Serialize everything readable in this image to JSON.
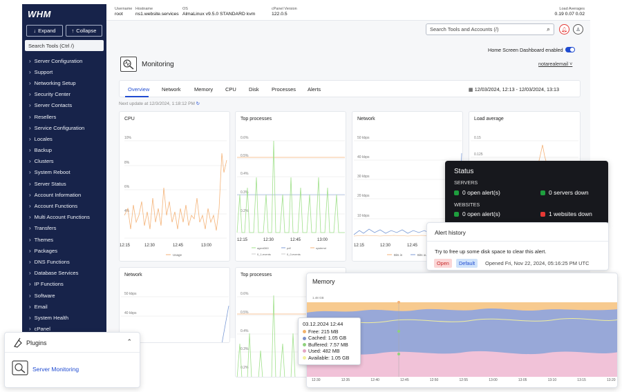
{
  "sidebar": {
    "logo": "WHM",
    "expand_label": "Expand",
    "collapse_label": "Collapse",
    "search_placeholder": "Search Tools (Ctrl /)",
    "items": [
      "Server Configuration",
      "Support",
      "Networking Setup",
      "Security Center",
      "Server Contacts",
      "Resellers",
      "Service Configuration",
      "Locales",
      "Backup",
      "Clusters",
      "System Reboot",
      "Server Status",
      "Account Information",
      "Account Functions",
      "Multi Account Functions",
      "Transfers",
      "Themes",
      "Packages",
      "DNS Functions",
      "Database Services",
      "IP Functions",
      "Software",
      "Email",
      "System Health",
      "cPanel"
    ]
  },
  "topbar": {
    "username_label": "Username",
    "username": "root",
    "hostname_label": "Hostname",
    "hostname": "ns1.website.services",
    "os_label": "OS",
    "os": "AlmaLinux v9.5.0 STANDARD kvm",
    "cpanel_label": "cPanel Version",
    "cpanel": "122.0.5",
    "load_label": "Load Averages",
    "load": "0.19  0.07  0.02"
  },
  "header": {
    "search_placeholder": "Search Tools and Accounts (/)",
    "dashboard_toggle_label": "Home Screen Dashboard enabled",
    "dashboard_enabled": true,
    "page_title": "Monitoring",
    "user": "notarealemail"
  },
  "tabs": [
    "Overview",
    "Network",
    "Memory",
    "CPU",
    "Disk",
    "Processes",
    "Alerts"
  ],
  "active_tab": "Overview",
  "date_range": "12/03/2024, 12:13 - 12/03/2024, 13:13",
  "next_update": "Next update at 12/3/2024, 1:18:12 PM",
  "cards": {
    "cpu": {
      "title": "CPU",
      "yticks": [
        "10%",
        "8%",
        "6%",
        "4%"
      ],
      "xticks": [
        "12:15",
        "12:30",
        "12:45",
        "13:00"
      ],
      "legend": "Usage"
    },
    "top_processes": {
      "title": "Top processes",
      "yticks": [
        "0.6%",
        "0.5%",
        "0.4%",
        "0.3%",
        "0.2%"
      ],
      "xticks": [
        "12:15",
        "12:30",
        "12:45",
        "13:00"
      ],
      "legend": [
        "agent360",
        "pdf",
        "systemd",
        "0_1-events",
        "0_0-events"
      ]
    },
    "network": {
      "title": "Network",
      "yticks": [
        "50 kbps",
        "40 kbps",
        "30 kbps",
        "20 kbps",
        "10 kbps"
      ],
      "xticks": [
        "12:15",
        "12:30",
        "12:45"
      ],
      "legend": [
        "Bits in",
        "Bits out"
      ]
    },
    "load": {
      "title": "Load average",
      "yticks": [
        "0.15",
        "0.125"
      ]
    },
    "network2": {
      "title": "Network",
      "yticks": [
        "50 kbps",
        "40 kbps"
      ]
    },
    "top_processes2": {
      "title": "Top processes",
      "yticks": [
        "0.6%",
        "0.5%",
        "0.4%",
        "0.3%",
        "0.2%"
      ]
    }
  },
  "status": {
    "title": "Status",
    "servers_label": "SERVERS",
    "servers_alerts": "0 open alert(s)",
    "servers_down": "0 servers down",
    "websites_label": "WEBSITES",
    "websites_alerts": "0 open alert(s)",
    "websites_down": "1 websites down",
    "ok_color": "#1e9e3e",
    "bad_color": "#e53935"
  },
  "alert_history": {
    "title": "Alert history",
    "message": "Try to free up some disk space to clear this alert.",
    "status_pill": "Open",
    "type_pill": "Default",
    "opened": "Opened Fri, Nov 22, 2024, 05:16:25 PM UTC"
  },
  "memory": {
    "title": "Memory",
    "ytick": "1.48 GB",
    "xticks": [
      "12:30",
      "12:35",
      "12:40",
      "12:45",
      "12:50",
      "12:55",
      "13:00",
      "13:05",
      "13:10",
      "13:15",
      "13:20"
    ]
  },
  "tooltip": {
    "time": "03.12.2024 12:44",
    "rows": [
      {
        "label": "Free: 215 MB",
        "color": "#f2b26b"
      },
      {
        "label": "Cached: 1.05 GB",
        "color": "#7b8fc7"
      },
      {
        "label": "Buffered: 7.57 MB",
        "color": "#8fd17c"
      },
      {
        "label": "Used: 482 MB",
        "color": "#e4a6c4"
      },
      {
        "label": "Available: 1.05 GB",
        "color": "#f2ef9c"
      }
    ]
  },
  "plugins": {
    "title": "Plugins",
    "item": "Server Monitoring"
  },
  "colors": {
    "sidebar_bg": "#17234a",
    "accent": "#1f4bd1",
    "cpu_line": "#f4b277",
    "proc_green": "#9fe08a",
    "proc_orange": "#f4b277",
    "net_blue": "#7c9bd6"
  }
}
